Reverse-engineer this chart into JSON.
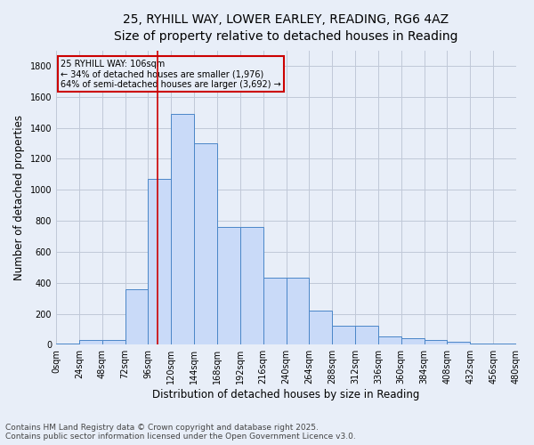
{
  "title_line1": "25, RYHILL WAY, LOWER EARLEY, READING, RG6 4AZ",
  "title_line2": "Size of property relative to detached houses in Reading",
  "xlabel": "Distribution of detached houses by size in Reading",
  "ylabel": "Number of detached properties",
  "bin_edges": [
    0,
    24,
    48,
    72,
    96,
    120,
    144,
    168,
    192,
    216,
    240,
    264,
    288,
    312,
    336,
    360,
    384,
    408,
    432,
    456,
    480
  ],
  "bar_heights": [
    10,
    30,
    30,
    360,
    1070,
    1490,
    1300,
    760,
    760,
    430,
    430,
    220,
    120,
    120,
    55,
    45,
    30,
    20,
    10,
    5
  ],
  "bar_facecolor": "#c9daf8",
  "bar_edgecolor": "#4a86c8",
  "grid_color": "#c0c8d8",
  "bg_color": "#e8eef8",
  "vline_x": 106,
  "vline_color": "#cc0000",
  "annotation_text": "25 RYHILL WAY: 106sqm\n← 34% of detached houses are smaller (1,976)\n64% of semi-detached houses are larger (3,692) →",
  "annotation_box_color": "#cc0000",
  "ylim": [
    0,
    1900
  ],
  "yticks": [
    0,
    200,
    400,
    600,
    800,
    1000,
    1200,
    1400,
    1600,
    1800
  ],
  "xtick_labels": [
    "0sqm",
    "24sqm",
    "48sqm",
    "72sqm",
    "96sqm",
    "120sqm",
    "144sqm",
    "168sqm",
    "192sqm",
    "216sqm",
    "240sqm",
    "264sqm",
    "288sqm",
    "312sqm",
    "336sqm",
    "360sqm",
    "384sqm",
    "408sqm",
    "432sqm",
    "456sqm",
    "480sqm"
  ],
  "footer_line1": "Contains HM Land Registry data © Crown copyright and database right 2025.",
  "footer_line2": "Contains public sector information licensed under the Open Government Licence v3.0.",
  "title_fontsize": 10,
  "label_fontsize": 8.5,
  "tick_fontsize": 7,
  "footer_fontsize": 6.5
}
